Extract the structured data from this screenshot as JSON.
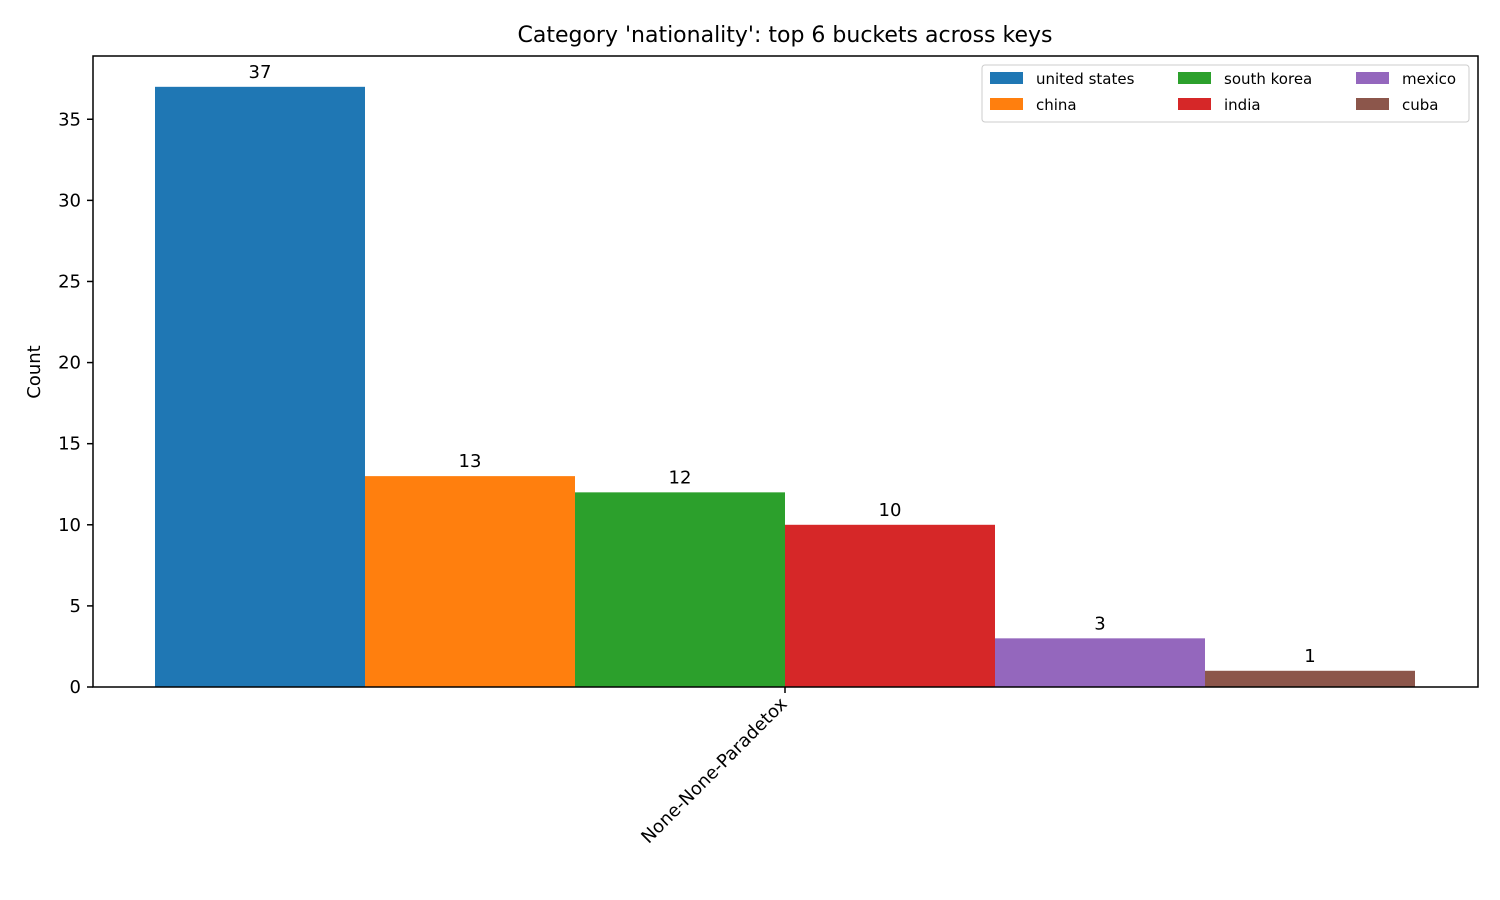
{
  "chart_data": {
    "type": "bar",
    "title": "Category 'nationality': top 6 buckets across keys",
    "xlabel": "",
    "ylabel": "Count",
    "categories": [
      "None-None-Paradetox"
    ],
    "series": [
      {
        "name": "united states",
        "values": [
          37
        ],
        "color": "#1f77b4"
      },
      {
        "name": "china",
        "values": [
          13
        ],
        "color": "#ff7f0e"
      },
      {
        "name": "south korea",
        "values": [
          12
        ],
        "color": "#2ca02c"
      },
      {
        "name": "india",
        "values": [
          10
        ],
        "color": "#d62728"
      },
      {
        "name": "mexico",
        "values": [
          3
        ],
        "color": "#9467bd"
      },
      {
        "name": "cuba",
        "values": [
          1
        ],
        "color": "#8c564b"
      }
    ],
    "ylim": [
      0,
      38.9
    ],
    "yticks": [
      0,
      5,
      10,
      15,
      20,
      25,
      30,
      35
    ],
    "legend": {
      "position": "top-right",
      "columns": 3
    },
    "grid": false
  }
}
